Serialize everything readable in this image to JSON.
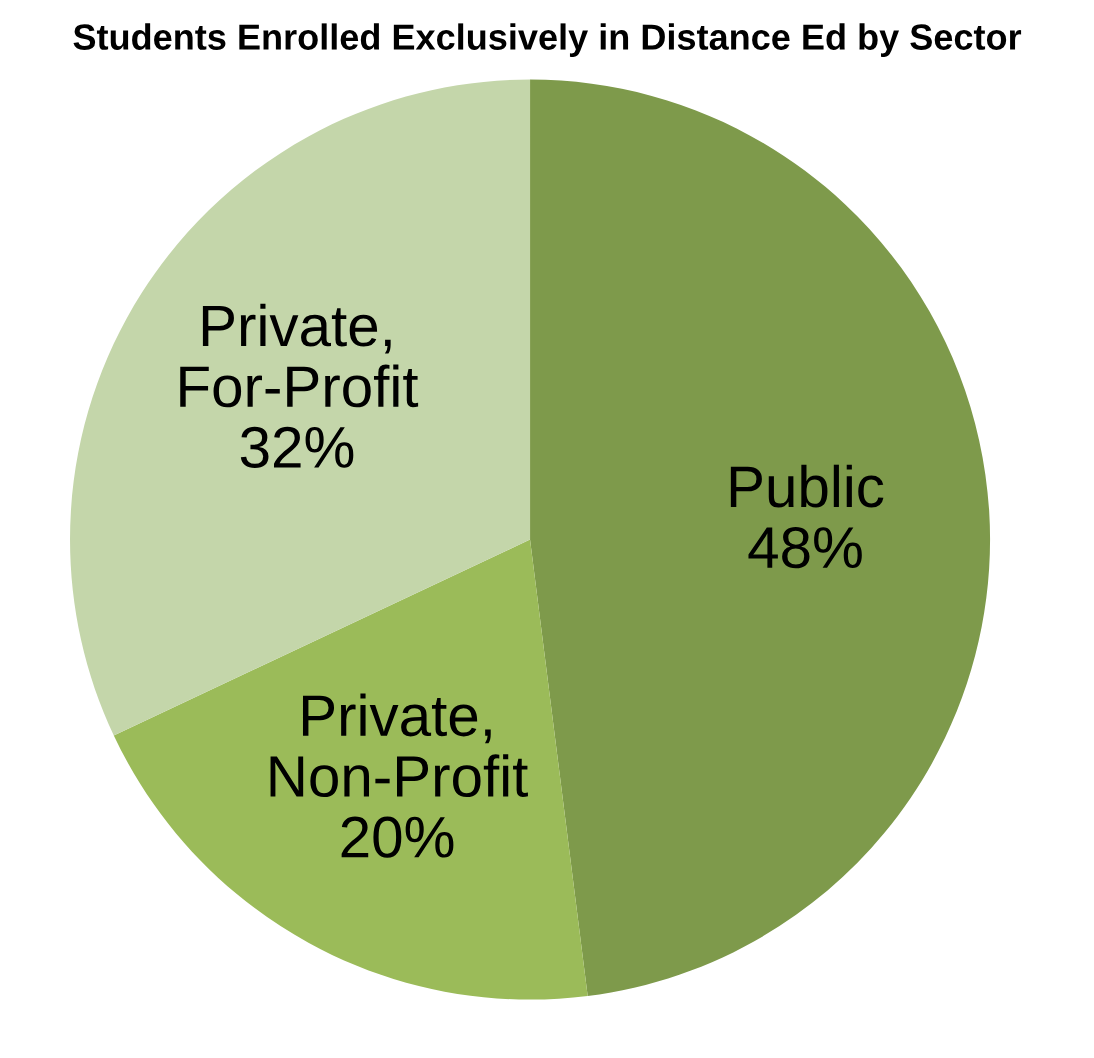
{
  "chart_data": {
    "type": "pie",
    "title": "Students Enrolled Exclusively in Distance Ed by Sector",
    "categories": [
      "Public",
      "Private,\nNon-Profit",
      "Private,\nFor-Profit"
    ],
    "values": [
      48,
      20,
      32
    ],
    "value_labels": [
      "48%",
      "20%",
      "32%"
    ],
    "colors": [
      "#7e9a4b",
      "#9bbb59",
      "#c4d6aa"
    ],
    "legend": false
  }
}
